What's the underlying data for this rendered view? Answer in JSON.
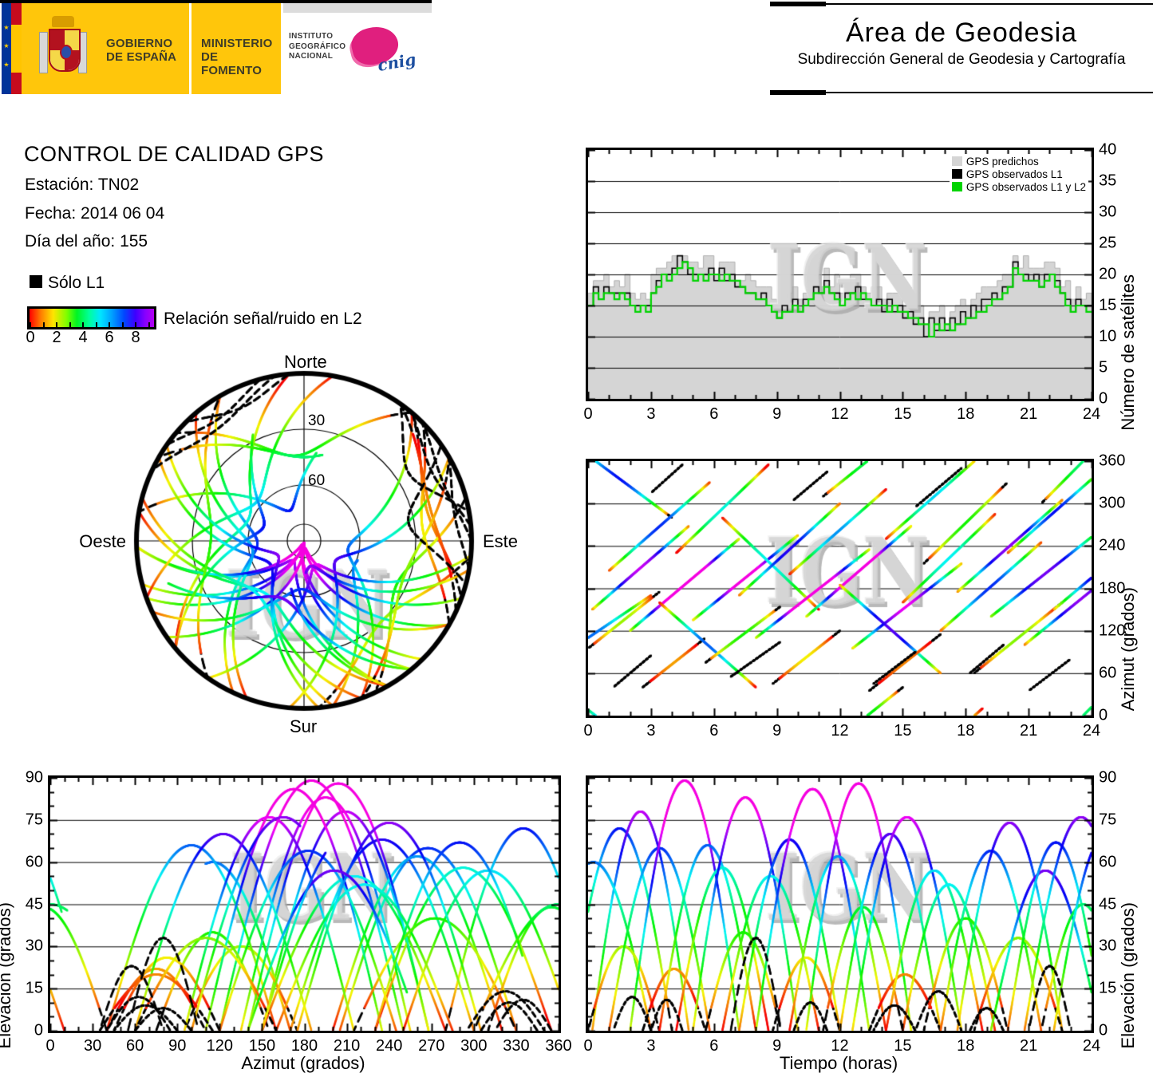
{
  "header": {
    "gobierno": "GOBIERNO\nDE ESPAÑA",
    "ministerio": "MINISTERIO\nDE FOMENTO",
    "instituto": "INSTITUTO\nGEOGRÁFICO\nNACIONAL",
    "cnig": "cnig",
    "eu_stars": "★ ★ ★",
    "area_title": "Área de Geodesia",
    "area_subtitle": "Subdirección General de Geodesia y Cartografía"
  },
  "info": {
    "title": "CONTROL DE CALIDAD GPS",
    "station": "Estación: TN02",
    "date": "Fecha: 2014 06 04",
    "doy": "Día del año: 155"
  },
  "legend": {
    "solo_l1": "Sólo L1",
    "colorbar_label": "Relación señal/ruido en L2",
    "colorbar_ticks": [
      "0",
      "2",
      "4",
      "6",
      "8"
    ],
    "colorbar_range": [
      0,
      9
    ]
  },
  "sky": {
    "north": "Norte",
    "south": "Sur",
    "east": "Este",
    "west": "Oeste",
    "ring30": "30",
    "ring60": "60",
    "elevation_rings_deg": [
      30,
      60,
      81
    ]
  },
  "watermark": "IGN",
  "chart_data": [
    {
      "id": "count",
      "type": "area",
      "x": {
        "label": "",
        "min": 0,
        "max": 24,
        "major": 3,
        "minor": 1,
        "tick_labels": [
          "0",
          "3",
          "6",
          "9",
          "12",
          "15",
          "18",
          "21",
          "24"
        ]
      },
      "y": {
        "label": "Número de satélites",
        "min": 0,
        "max": 40,
        "major": 5,
        "tick_labels": [
          "0",
          "5",
          "10",
          "15",
          "20",
          "25",
          "30",
          "35",
          "40"
        ],
        "grid": [
          5,
          10,
          15,
          20,
          25,
          30,
          35
        ]
      },
      "legend": [
        {
          "label": "GPS predichos",
          "color": "#d5d5d5"
        },
        {
          "label": "GPS observados L1",
          "color": "#000000"
        },
        {
          "label": "GPS observados L1 y L2",
          "color": "#00d400"
        }
      ],
      "step_hours": 0.25,
      "series": {
        "predichos": [
          17,
          19,
          19,
          20,
          18,
          19,
          18,
          20,
          17,
          16,
          17,
          16,
          20,
          21,
          21,
          22,
          23,
          23,
          23,
          22,
          22,
          21,
          23,
          23,
          20,
          22,
          22,
          22,
          19,
          19,
          20,
          19,
          18,
          18,
          18,
          16,
          15,
          16,
          17,
          18,
          16,
          17,
          19,
          20,
          18,
          21,
          18,
          20,
          17,
          18,
          20,
          20,
          18,
          17,
          18,
          18,
          16,
          17,
          17,
          17,
          15,
          15,
          15,
          15,
          12,
          14,
          14,
          15,
          12,
          14,
          15,
          16,
          15,
          16,
          17,
          18,
          18,
          18,
          19,
          20,
          20,
          23,
          21,
          23,
          21,
          21,
          21,
          22,
          22,
          21,
          18,
          19,
          16,
          18,
          16,
          17,
          16
        ],
        "observados_l1": [
          15,
          18,
          16,
          18,
          17,
          17,
          17,
          17,
          15,
          15,
          15,
          15,
          17,
          19,
          20,
          20,
          21,
          23,
          22,
          20,
          20,
          20,
          20,
          21,
          19,
          21,
          19,
          20,
          18,
          18,
          17,
          17,
          16,
          17,
          15,
          14,
          13,
          15,
          14,
          16,
          14,
          16,
          16,
          18,
          17,
          19,
          17,
          17,
          15,
          17,
          17,
          18,
          16,
          16,
          15,
          16,
          14,
          16,
          14,
          15,
          13,
          14,
          12,
          13,
          10,
          13,
          11,
          13,
          11,
          13,
          12,
          14,
          13,
          15,
          14,
          16,
          16,
          17,
          16,
          18,
          18,
          22,
          20,
          20,
          19,
          20,
          18,
          20,
          20,
          19,
          17,
          16,
          14,
          16,
          15,
          15,
          14
        ],
        "observados_l1_l2": [
          15,
          17,
          16,
          17,
          17,
          16,
          17,
          16,
          15,
          14,
          15,
          14,
          17,
          18,
          20,
          19,
          20,
          21,
          22,
          21,
          19,
          20,
          19,
          20,
          20,
          19,
          20,
          19,
          19,
          18,
          17,
          17,
          16,
          16,
          15,
          14,
          13,
          14,
          14,
          15,
          14,
          15,
          16,
          17,
          17,
          18,
          17,
          16,
          15,
          16,
          17,
          16,
          17,
          16,
          15,
          15,
          15,
          14,
          15,
          14,
          14,
          13,
          13,
          12,
          12,
          10,
          12,
          11,
          12,
          11,
          12,
          12,
          13,
          13,
          14,
          14,
          15,
          16,
          16,
          17,
          18,
          21,
          20,
          19,
          19,
          19,
          18,
          19,
          20,
          18,
          17,
          15,
          14,
          15,
          15,
          14,
          14
        ]
      }
    },
    {
      "id": "azt",
      "type": "tracks",
      "x": {
        "label": "",
        "min": 0,
        "max": 24,
        "major": 3,
        "minor": 1,
        "tick_labels": [
          "0",
          "3",
          "6",
          "9",
          "12",
          "15",
          "18",
          "21",
          "24"
        ]
      },
      "y": {
        "label": "Azimut (grados)",
        "min": 0,
        "max": 360,
        "major": 60,
        "tick_labels": [
          "0",
          "60",
          "120",
          "180",
          "240",
          "300",
          "360"
        ],
        "grid": [
          60,
          120,
          180,
          240,
          300
        ]
      },
      "mode": "az_vs_time"
    },
    {
      "id": "elaz",
      "type": "tracks",
      "x": {
        "label": "Azimut (grados)",
        "min": 0,
        "max": 360,
        "major": 30,
        "minor": 10,
        "tick_labels": [
          "0",
          "30",
          "60",
          "90",
          "120",
          "150",
          "180",
          "210",
          "240",
          "270",
          "300",
          "330",
          "360"
        ]
      },
      "y": {
        "label": "Elevación (grados)",
        "min": 0,
        "max": 90,
        "major": 15,
        "minor": 5,
        "tick_labels": [
          "0",
          "15",
          "30",
          "45",
          "60",
          "75",
          "90"
        ],
        "grid": [
          15,
          30,
          45,
          60,
          75
        ]
      },
      "mode": "el_vs_az"
    },
    {
      "id": "elt",
      "type": "tracks",
      "x": {
        "label": "Tiempo (horas)",
        "min": 0,
        "max": 24,
        "major": 3,
        "minor": 1,
        "tick_labels": [
          "0",
          "3",
          "6",
          "9",
          "12",
          "15",
          "18",
          "21",
          "24"
        ]
      },
      "y": {
        "label": "Elevación (grados)",
        "min": 0,
        "max": 90,
        "major": 15,
        "minor": 5,
        "tick_labels": [
          "0",
          "15",
          "30",
          "45",
          "60",
          "75",
          "90"
        ],
        "grid": [
          15,
          30,
          45,
          60,
          75
        ]
      },
      "mode": "el_vs_time"
    },
    {
      "id": "sky",
      "type": "polar-sky",
      "labels": {
        "n": "Norte",
        "s": "Sur",
        "e": "Este",
        "w": "Oeste"
      },
      "rings_deg": [
        30,
        60,
        81
      ]
    }
  ],
  "satellite_passes": {
    "fields": [
      "rise_hour",
      "duration_h",
      "azimuth_rise_deg",
      "azimuth_set_deg",
      "max_elevation_deg",
      "snr_offset",
      "l1_black_edges"
    ],
    "l2": [
      [
        -1.0,
        5.0,
        30,
        -80,
        72,
        0,
        1
      ],
      [
        0.2,
        4.6,
        150,
        268,
        78,
        1,
        0
      ],
      [
        -2.5,
        5.5,
        60,
        170,
        60,
        0.5,
        0
      ],
      [
        0.0,
        3.4,
        95,
        175,
        30,
        -0.5,
        1
      ],
      [
        1.0,
        4.8,
        205,
        330,
        65,
        0.5,
        0
      ],
      [
        2.0,
        5.2,
        120,
        250,
        89,
        2,
        0
      ],
      [
        2.6,
        3.0,
        40,
        110,
        22,
        -1,
        1
      ],
      [
        3.4,
        4.6,
        160,
        40,
        66,
        0,
        0
      ],
      [
        4.2,
        4.4,
        230,
        355,
        58,
        -0.5,
        0
      ],
      [
        5.0,
        5.0,
        135,
        255,
        83,
        1.5,
        0
      ],
      [
        5.6,
        3.6,
        75,
        155,
        35,
        0,
        1
      ],
      [
        6.4,
        4.6,
        280,
        150,
        55,
        0,
        0
      ],
      [
        7.2,
        4.8,
        170,
        300,
        68,
        0.8,
        0
      ],
      [
        8.0,
        5.4,
        110,
        235,
        86,
        2,
        0
      ],
      [
        8.8,
        3.2,
        45,
        120,
        26,
        -0.8,
        1
      ],
      [
        9.6,
        4.6,
        200,
        320,
        62,
        0,
        0
      ],
      [
        10.4,
        5.0,
        140,
        268,
        88,
        1.8,
        0
      ],
      [
        11.2,
        3.8,
        310,
        400,
        44,
        -0.3,
        1
      ],
      [
        12.0,
        4.8,
        185,
        60,
        70,
        1,
        0
      ],
      [
        12.6,
        5.2,
        95,
        215,
        76,
        1.5,
        0
      ],
      [
        13.4,
        3.4,
        35,
        115,
        20,
        -1,
        1
      ],
      [
        14.2,
        4.6,
        250,
        370,
        57,
        0,
        0
      ],
      [
        15.0,
        4.4,
        160,
        285,
        52,
        0.3,
        0
      ],
      [
        16.0,
        4.0,
        215,
        330,
        40,
        -0.5,
        1
      ],
      [
        16.8,
        4.8,
        120,
        245,
        64,
        0.6,
        0
      ],
      [
        17.6,
        5.0,
        175,
        305,
        74,
        1,
        0
      ],
      [
        18.4,
        4.2,
        60,
        160,
        33,
        -0.6,
        1
      ],
      [
        19.2,
        5.2,
        140,
        262,
        57,
        2.5,
        0
      ],
      [
        20.0,
        4.6,
        230,
        350,
        67,
        0.5,
        0
      ],
      [
        20.8,
        5.4,
        100,
        230,
        76,
        0.8,
        0
      ],
      [
        21.6,
        4.0,
        300,
        420,
        45,
        0,
        1
      ],
      [
        22.2,
        5.0,
        150,
        275,
        70,
        1.2,
        0
      ]
    ],
    "l1_only_fields": [
      "rise_hour",
      "duration_h",
      "azimuth_rise_deg",
      "azimuth_set_deg",
      "max_elevation_deg"
    ],
    "l1_only": [
      [
        1.2,
        1.8,
        40,
        85,
        12
      ],
      [
        3.0,
        1.5,
        315,
        355,
        11
      ],
      [
        6.8,
        2.4,
        55,
        105,
        33
      ],
      [
        9.8,
        1.6,
        305,
        345,
        10
      ],
      [
        13.6,
        2.0,
        45,
        90,
        9
      ],
      [
        15.6,
        2.2,
        295,
        350,
        14
      ],
      [
        18.2,
        1.6,
        60,
        100,
        8
      ],
      [
        21.0,
        2.0,
        35,
        80,
        23
      ]
    ]
  }
}
